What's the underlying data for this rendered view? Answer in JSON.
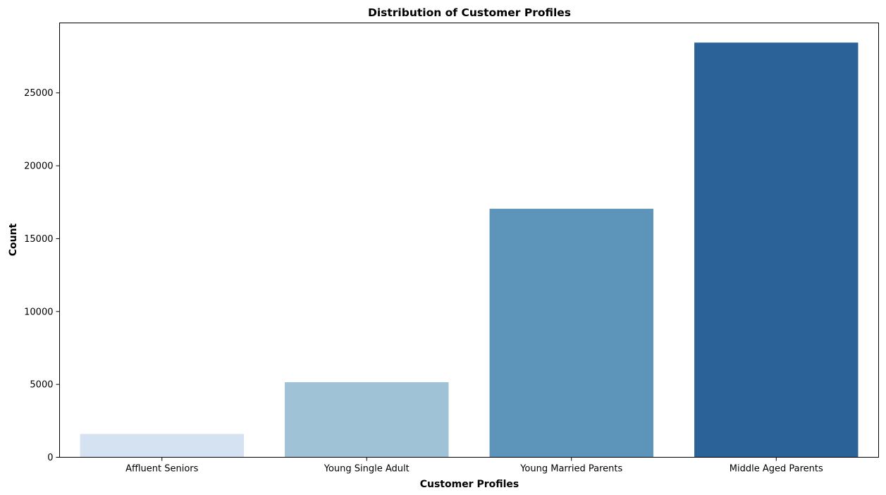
{
  "chart_data": {
    "type": "bar",
    "title": "Distribution of Customer Profiles",
    "xlabel": "Customer Profiles",
    "ylabel": "Count",
    "categories": [
      "Affluent Seniors",
      "Young Single Adult",
      "Young Married Parents",
      "Middle Aged Parents"
    ],
    "values": [
      1600,
      5150,
      17050,
      28450
    ],
    "colors": [
      "#d4e2f1",
      "#9fc2d7",
      "#5d95ba",
      "#2b6399"
    ],
    "ylim": [
      0,
      29800
    ],
    "yticks": [
      0,
      5000,
      10000,
      15000,
      20000,
      25000
    ],
    "grid": false,
    "legend": "none"
  }
}
